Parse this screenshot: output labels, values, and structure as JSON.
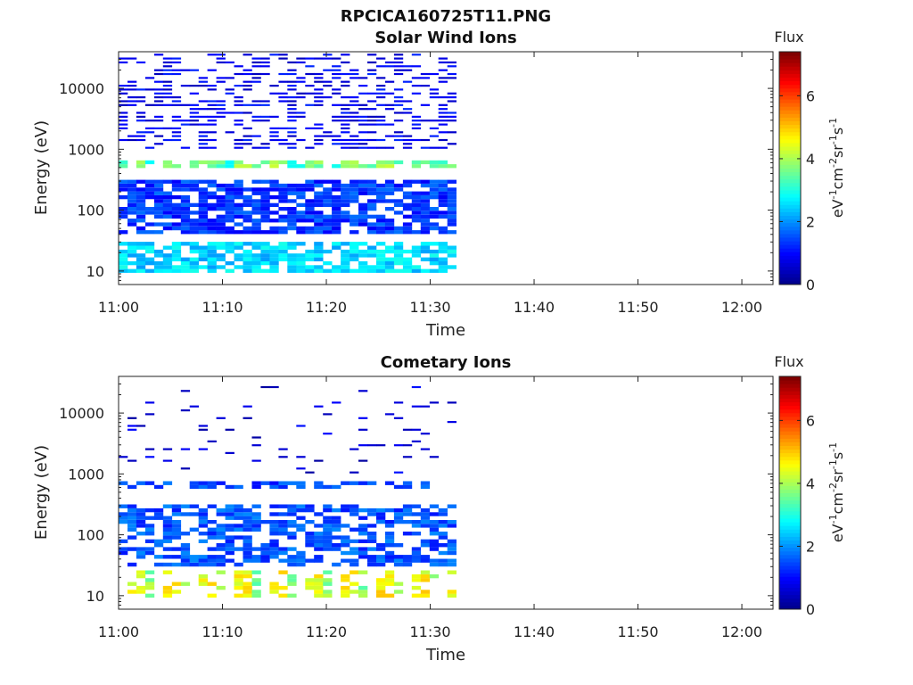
{
  "figure": {
    "title": "RPCICA160725T11.PNG"
  },
  "colors": {
    "colormap": [
      "#00008f",
      "#0000ff",
      "#0080ff",
      "#00ffff",
      "#80ff80",
      "#ffff00",
      "#ff8000",
      "#ff0000",
      "#800000"
    ],
    "axes": "#222222"
  },
  "chart_data": [
    {
      "type": "heatmap",
      "title": "Solar Wind Ions",
      "xlabel": "Time",
      "ylabel": "Energy (eV)",
      "x_ticks": [
        "11:00",
        "11:10",
        "11:20",
        "11:30",
        "11:40",
        "11:50",
        "12:00"
      ],
      "x_range": [
        "11:00",
        "12:03"
      ],
      "y_scale": "log",
      "y_ticks": [
        "10",
        "100",
        "1000",
        "10000"
      ],
      "y_range": [
        6,
        40000
      ],
      "data_end": "11:32:30",
      "colorbar": {
        "label": "Flux",
        "units": "eV-1cm-2sr-1s-1",
        "ticks": [
          "0",
          "2",
          "4",
          "6"
        ],
        "range": [
          0,
          7.4
        ]
      },
      "features": [
        {
          "energy_range_eV": [
            10,
            30
          ],
          "flux_level": 2.5,
          "description": "patchy band"
        },
        {
          "energy_range_eV": [
            40,
            300
          ],
          "flux_level": 1.3
        },
        {
          "energy_range_eV": [
            500,
            700
          ],
          "flux_level": 3.2,
          "peak_level": 3.8
        },
        {
          "energy_range_eV": [
            1000,
            40000
          ],
          "flux_level": 0.8
        }
      ]
    },
    {
      "type": "heatmap",
      "title": "Cometary Ions",
      "xlabel": "Time",
      "ylabel": "Energy (eV)",
      "x_ticks": [
        "11:00",
        "11:10",
        "11:20",
        "11:30",
        "11:40",
        "11:50",
        "12:00"
      ],
      "x_range": [
        "11:00",
        "12:03"
      ],
      "y_scale": "log",
      "y_ticks": [
        "10",
        "100",
        "1000",
        "10000"
      ],
      "y_range": [
        6,
        40000
      ],
      "data_end": "11:32:30",
      "colorbar": {
        "label": "Flux",
        "units": "eV-1cm-2sr-1s-1",
        "ticks": [
          "0",
          "2",
          "4",
          "6"
        ],
        "range": [
          0,
          7.4
        ]
      },
      "features": [
        {
          "energy_range_eV": [
            9,
            25
          ],
          "flux_level": 3.8,
          "peak_level": 4.6,
          "description": "periodic bursts"
        },
        {
          "energy_range_eV": [
            30,
            300
          ],
          "flux_level": 1.5
        },
        {
          "energy_range_eV": [
            600,
            800
          ],
          "flux_level": 1.4
        },
        {
          "energy_range_eV": [
            1000,
            30000
          ],
          "flux_level": 0.6,
          "description": "sparse"
        }
      ]
    }
  ]
}
